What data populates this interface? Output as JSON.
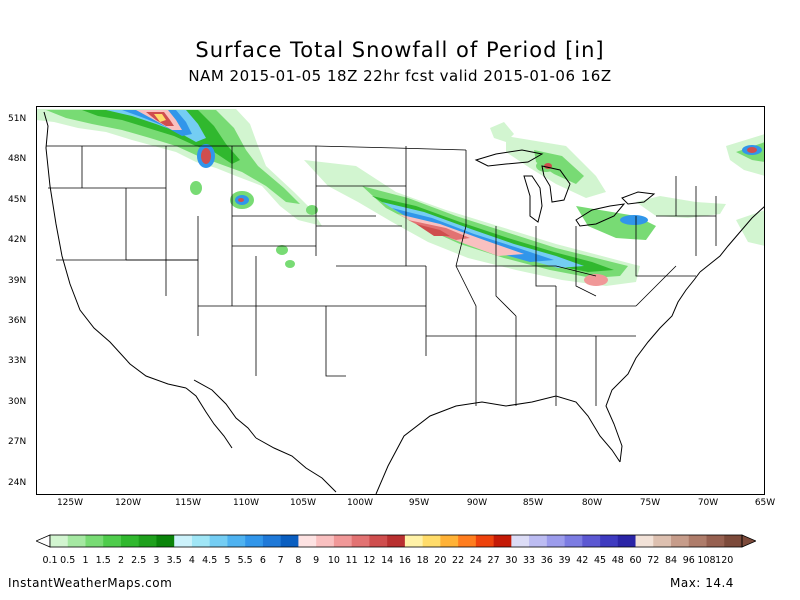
{
  "title": "Surface Total Snowfall of Period [in]",
  "subtitle": "NAM 2015-01-05 18Z 22hr fcst valid 2015-01-06 16Z",
  "lat_labels": [
    "51N",
    "48N",
    "45N",
    "42N",
    "39N",
    "36N",
    "33N",
    "30N",
    "27N",
    "24N"
  ],
  "lon_labels": [
    "125W",
    "120W",
    "115W",
    "110W",
    "105W",
    "100W",
    "95W",
    "90W",
    "85W",
    "80W",
    "75W",
    "70W",
    "65W"
  ],
  "legend": {
    "labels": [
      "0.1",
      "0.5",
      "1",
      "1.5",
      "2",
      "2.5",
      "3",
      "3.5",
      "4",
      "4.5",
      "5",
      "5.5",
      "6",
      "7",
      "8",
      "9",
      "10",
      "11",
      "12",
      "14",
      "16",
      "18",
      "20",
      "22",
      "24",
      "27",
      "30",
      "33",
      "36",
      "39",
      "42",
      "45",
      "48",
      "60",
      "72",
      "84",
      "96",
      "108",
      "120"
    ],
    "colors": [
      "#d2f5d0",
      "#a5e8a2",
      "#78db74",
      "#4fcc4c",
      "#30b82e",
      "#1ea01c",
      "#0a840a",
      "#ccf2fb",
      "#a0e6f6",
      "#74cdf3",
      "#4eb2f0",
      "#3196ea",
      "#1f79d8",
      "#0a5ec0",
      "#fde2e2",
      "#f9c0c0",
      "#f09898",
      "#e27272",
      "#cf4e4e",
      "#b93030",
      "#fff2a8",
      "#ffdc6a",
      "#ffb236",
      "#ff7d1e",
      "#ee420c",
      "#c41a06",
      "#dcdcf6",
      "#bcbcf2",
      "#9c9cec",
      "#7c7ce2",
      "#5c58d2",
      "#3e3ac0",
      "#2a24a6",
      "#f2e2d8",
      "#ddc0b0",
      "#c69c8a",
      "#ae7c6a",
      "#966050",
      "#7c4a3a"
    ]
  },
  "footer": {
    "site": "InstantWeatherMaps.com",
    "max_label": "Max:",
    "max_value": "14.4"
  }
}
